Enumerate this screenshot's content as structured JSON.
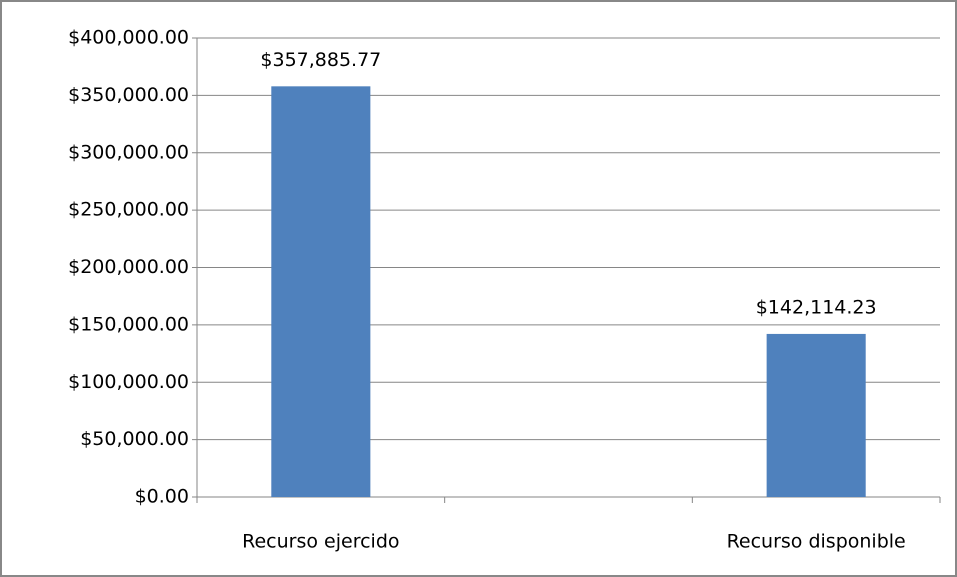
{
  "chart_data": {
    "type": "bar",
    "categories": [
      "Recurso ejercido",
      null,
      "Recurso disponible"
    ],
    "values": [
      357885.77,
      null,
      142114.23
    ],
    "value_labels": [
      "$357,885.77",
      null,
      "$142,114.23"
    ],
    "color": "#4f81bd",
    "ylim": [
      0,
      400000
    ],
    "yticks": [
      {
        "value": 0,
        "label": "$0.00"
      },
      {
        "value": 50000,
        "label": "$50,000.00"
      },
      {
        "value": 100000,
        "label": "$100,000.00"
      },
      {
        "value": 150000,
        "label": "$150,000.00"
      },
      {
        "value": 200000,
        "label": "$200,000.00"
      },
      {
        "value": 250000,
        "label": "$250,000.00"
      },
      {
        "value": 300000,
        "label": "$300,000.00"
      },
      {
        "value": 350000,
        "label": "$350,000.00"
      },
      {
        "value": 400000,
        "label": "$400,000.00"
      }
    ],
    "grid": true
  }
}
